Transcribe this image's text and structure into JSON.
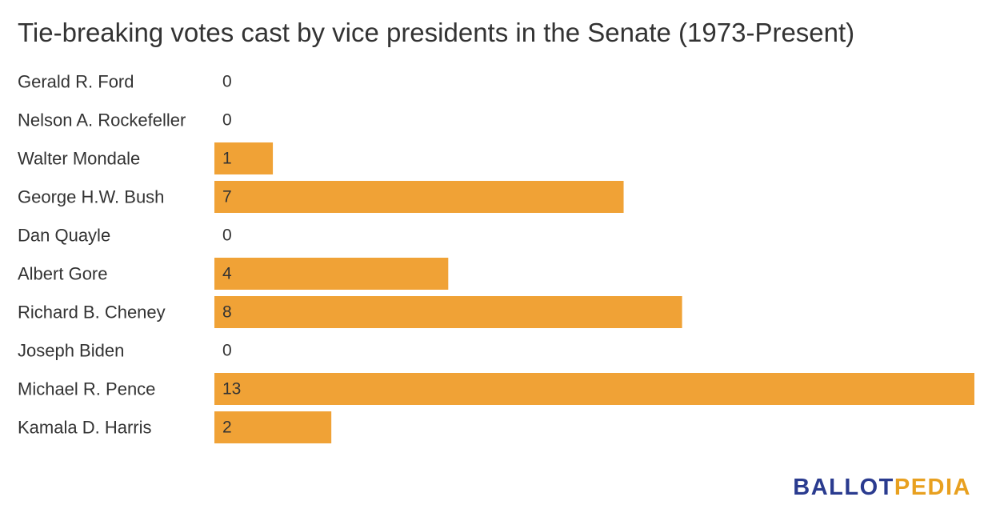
{
  "chart_data": {
    "type": "bar",
    "orientation": "horizontal",
    "title": "Tie-breaking votes cast by vice presidents in the Senate (1973-Present)",
    "categories": [
      "Gerald R. Ford",
      "Nelson A. Rockefeller",
      "Walter Mondale",
      "George H.W. Bush",
      "Dan Quayle",
      "Albert Gore",
      "Richard B. Cheney",
      "Joseph Biden",
      "Michael R. Pence",
      "Kamala D. Harris"
    ],
    "values": [
      0,
      0,
      1,
      7,
      0,
      4,
      8,
      0,
      13,
      2
    ],
    "xlim": [
      0,
      13
    ],
    "grid": false,
    "bar_color": "#f0a236"
  },
  "branding": {
    "part1": "BALLOT",
    "part2": "PEDIA"
  }
}
